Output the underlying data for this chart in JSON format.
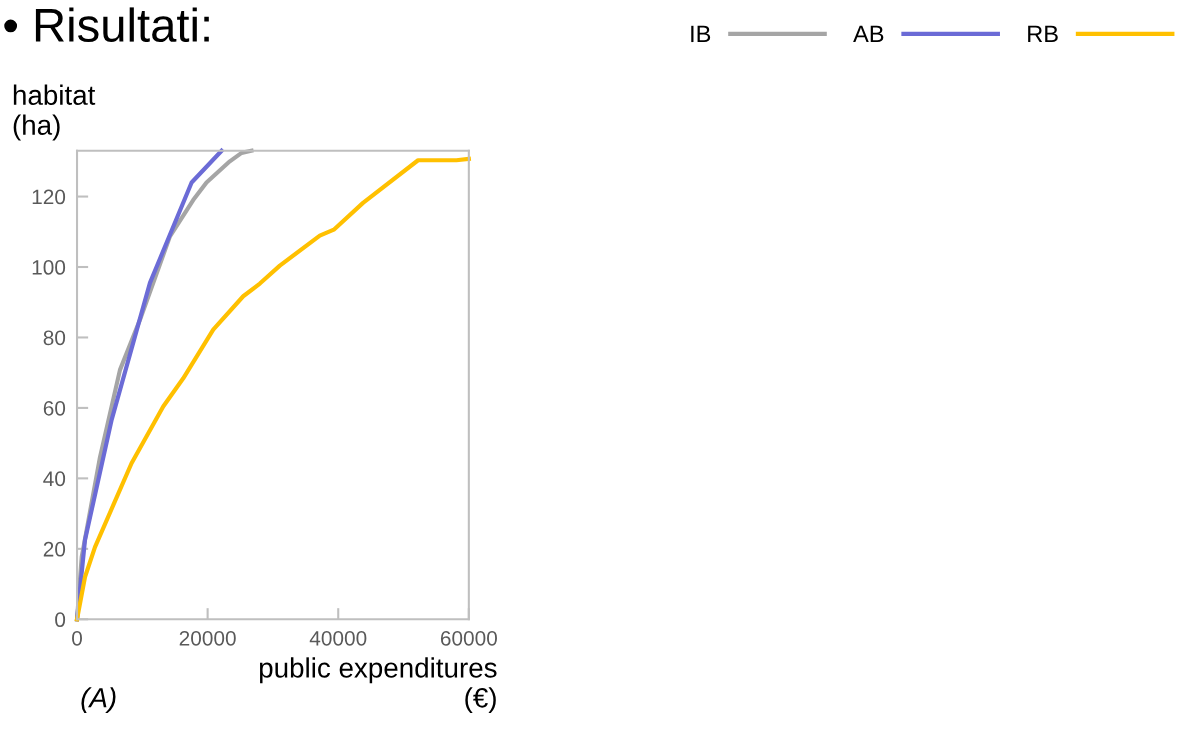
{
  "chart_data": {
    "type": "line",
    "title": "• Risultati:",
    "xlabel": "public expenditures\n(€)",
    "ylabel": "habitat\n(ha)",
    "annotations": [
      "(A)"
    ],
    "series": [
      {
        "name": "IB",
        "color": "#a5a5a5",
        "x": [
          0,
          720,
          3520,
          6580,
          9640,
          14230,
          17790,
          19830,
          23400,
          25200,
          26720
        ],
        "values": [
          0,
          17.7,
          46,
          70.8,
          85,
          108.7,
          119,
          124,
          130,
          132.4,
          133
        ]
      },
      {
        "name": "AB",
        "color": "#6b6bd6",
        "x": [
          0,
          1220,
          5300,
          11170,
          17550,
          22140
        ],
        "values": [
          0,
          22.5,
          56.6,
          95.5,
          124,
          133
        ]
      },
      {
        "name": "RB",
        "color": "#ffc000",
        "x": [
          0,
          1220,
          2750,
          5550,
          8350,
          13200,
          16270,
          20860,
          25450,
          28000,
          31060,
          37180,
          39320,
          43800,
          52230,
          58100,
          60000
        ],
        "values": [
          0,
          12,
          20.5,
          32.4,
          44.3,
          60.4,
          68.4,
          82.2,
          91.7,
          95.3,
          100.4,
          108.9,
          110.6,
          118.2,
          130.3,
          130.3,
          130.7
        ]
      }
    ],
    "xlim": [
      0,
      60000
    ],
    "xticks": [
      0,
      20000,
      40000,
      60000
    ],
    "ylim": [
      0,
      133
    ],
    "yticks": [
      0,
      20,
      40,
      60,
      80,
      100,
      120
    ],
    "grid": false,
    "legend": "top right",
    "marker": "none",
    "line_style": "solid"
  }
}
